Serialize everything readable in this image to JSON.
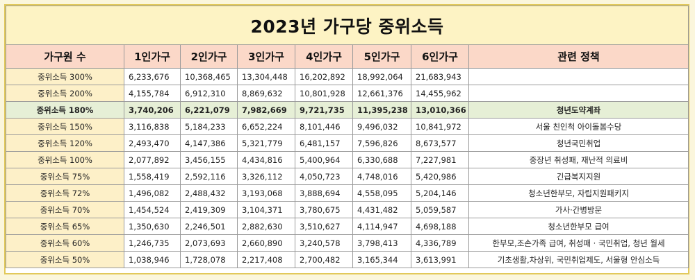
{
  "title": "2023년 가구당 중위소득",
  "headers": [
    "가구원 수",
    "1인가구",
    "2인가구",
    "3인가구",
    "4인가구",
    "5인가구",
    "6인가구",
    "관련 정책"
  ],
  "rows": [
    {
      "label": "중위소득 300%",
      "values": [
        "6,233,676",
        "10,368,465",
        "13,304,448",
        "16,202,892",
        "18,992,064",
        "21,683,943"
      ],
      "policy": ""
    },
    {
      "label": "중위소득 200%",
      "values": [
        "4,155,784",
        "6,912,310",
        "8,869,632",
        "10,801,928",
        "12,661,376",
        "14,455,962"
      ],
      "policy": ""
    },
    {
      "label": "중위소득 180%",
      "values": [
        "3,740,206",
        "6,221,079",
        "7,982,669",
        "9,721,735",
        "11,395,238",
        "13,010,366"
      ],
      "policy": "청년도약계좌"
    },
    {
      "label": "중위소득 150%",
      "values": [
        "3,116,838",
        "5,184,233",
        "6,652,224",
        "8,101,446",
        "9,496,032",
        "10,841,972"
      ],
      "policy": "서울 친인척 아이돌봄수당"
    },
    {
      "label": "중위소득 120%",
      "values": [
        "2,493,470",
        "4,147,386",
        "5,321,779",
        "6,481,157",
        "7,596,826",
        "8,673,577"
      ],
      "policy": "청년국민취업"
    },
    {
      "label": "중위소득 100%",
      "values": [
        "2,077,892",
        "3,456,155",
        "4,434,816",
        "5,400,964",
        "6,330,688",
        "7,227,981"
      ],
      "policy": "중장년 취성패, 재난적 의료비"
    },
    {
      "label": "중위소득 75%",
      "values": [
        "1,558,419",
        "2,592,116",
        "3,326,112",
        "4,050,723",
        "4,748,016",
        "5,420,986"
      ],
      "policy": "긴급복지지원"
    },
    {
      "label": "중위소득 72%",
      "values": [
        "1,496,082",
        "2,488,432",
        "3,193,068",
        "3,888,694",
        "4,558,095",
        "5,204,146"
      ],
      "policy": "청소년한부모, 자립지원패키지"
    },
    {
      "label": "중위소득 70%",
      "values": [
        "1,454,524",
        "2,419,309",
        "3,104,371",
        "3,780,675",
        "4,431,482",
        "5,059,587"
      ],
      "policy": "가사·간병방문"
    },
    {
      "label": "중위소득 65%",
      "values": [
        "1,350,630",
        "2,246,501",
        "2,882,630",
        "3,510,627",
        "4,114,947",
        "4,698,188"
      ],
      "policy": "청소년한부모 급여"
    },
    {
      "label": "중위소득 60%",
      "values": [
        "1,246,735",
        "2,073,693",
        "2,660,890",
        "3,240,578",
        "3,798,413",
        "4,336,789"
      ],
      "policy": "한부모,조손가족 급여, 취성패 · 국민취업, 청년 월세"
    },
    {
      "label": "중위소득 50%",
      "values": [
        "1,038,946",
        "1,728,078",
        "2,217,408",
        "2,700,482",
        "3,165,344",
        "3,613,991"
      ],
      "policy": "기초생활,차상위, 국민취업제도, 서울형 안심소득"
    }
  ]
}
